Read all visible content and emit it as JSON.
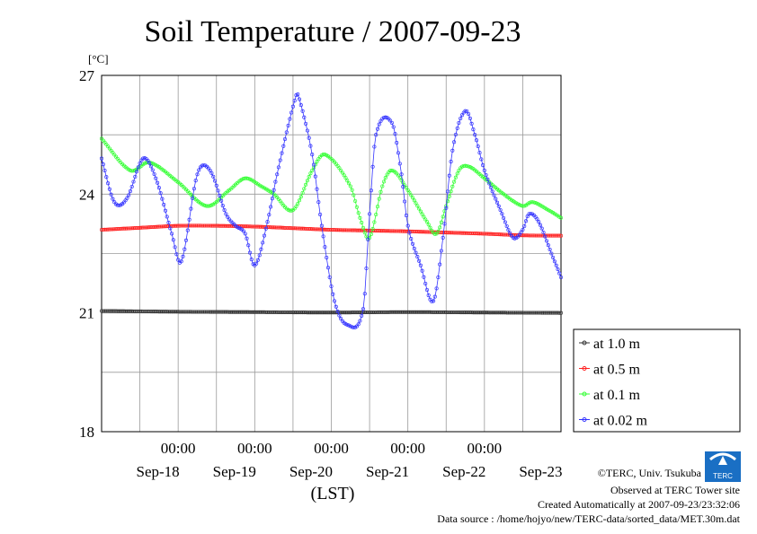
{
  "chart_data": {
    "type": "line",
    "title": "Soil Temperature / 2007-09-23",
    "ylabel": "[°C]",
    "xlabel": "(LST)",
    "ylim": [
      18,
      27
    ],
    "yticks": [
      18,
      21,
      24,
      27
    ],
    "xlim": [
      0,
      144
    ],
    "x_unit": "hours since Sep-17 00:00 LST",
    "time_ticks": [
      {
        "x": 24,
        "label": "00:00",
        "date": "Sep-18"
      },
      {
        "x": 48,
        "label": "00:00",
        "date": "Sep-19"
      },
      {
        "x": 72,
        "label": "00:00",
        "date": "Sep-20"
      },
      {
        "x": 96,
        "label": "00:00",
        "date": "Sep-21"
      },
      {
        "x": 120,
        "label": "00:00",
        "date": "Sep-22"
      }
    ],
    "date_labels": [
      "Sep-18",
      "Sep-19",
      "Sep-20",
      "Sep-21",
      "Sep-22",
      "Sep-23"
    ],
    "grid": true,
    "legend_position": "right",
    "series": [
      {
        "name": "at 1.0 m",
        "color": "#333333",
        "x": [
          0,
          24,
          48,
          72,
          96,
          120,
          144
        ],
        "y": [
          21.05,
          21.03,
          21.02,
          21.01,
          21.02,
          21.01,
          21.0
        ]
      },
      {
        "name": "at 0.5 m",
        "color": "#ff2020",
        "x": [
          0,
          12,
          24,
          36,
          48,
          60,
          72,
          84,
          96,
          108,
          120,
          132,
          144
        ],
        "y": [
          23.1,
          23.15,
          23.2,
          23.2,
          23.18,
          23.14,
          23.1,
          23.08,
          23.06,
          23.03,
          23.0,
          22.96,
          22.95
        ]
      },
      {
        "name": "at 0.1 m",
        "color": "#33ff33",
        "x": [
          0,
          9,
          15,
          24,
          33,
          40,
          45,
          50,
          54,
          60,
          66,
          70,
          78,
          81,
          84,
          88,
          91,
          96,
          102,
          105,
          108,
          112,
          115,
          120,
          126,
          132,
          135,
          140,
          144
        ],
        "y": [
          25.4,
          24.6,
          24.8,
          24.3,
          23.7,
          24.1,
          24.4,
          24.2,
          24.0,
          23.6,
          24.6,
          25.0,
          24.2,
          23.4,
          22.9,
          24.2,
          24.6,
          24.1,
          23.3,
          23.0,
          23.7,
          24.6,
          24.7,
          24.4,
          24.0,
          23.7,
          23.8,
          23.6,
          23.4
        ]
      },
      {
        "name": "at 0.02 m",
        "color": "#3333ff",
        "x": [
          0,
          4,
          8,
          13,
          17,
          22,
          25,
          30,
          34,
          39,
          42,
          45,
          48,
          52,
          55,
          61,
          62,
          66,
          69,
          73,
          77,
          82,
          84,
          86,
          91,
          94,
          96,
          100,
          104,
          107,
          110,
          114,
          117,
          120,
          125,
          129,
          132,
          134,
          137,
          141,
          144
        ],
        "y": [
          24.9,
          23.8,
          23.9,
          24.9,
          24.4,
          23.0,
          22.3,
          24.5,
          24.6,
          23.5,
          23.2,
          23.0,
          22.2,
          23.3,
          24.5,
          26.5,
          26.4,
          25.0,
          23.2,
          21.3,
          20.7,
          21.1,
          23.5,
          25.5,
          25.8,
          24.5,
          23.2,
          22.2,
          21.3,
          22.9,
          25.1,
          26.1,
          25.5,
          24.6,
          23.6,
          22.9,
          23.1,
          23.5,
          23.3,
          22.5,
          21.9
        ]
      }
    ]
  },
  "footer": {
    "copyright": "©TERC, Univ. Tsukuba",
    "observed": "Observed at TERC Tower site",
    "created": "Created Automatically at 2007-09-23/23:32:06",
    "source": "Data source : /home/hojyo/new/TERC-data/sorted_data/MET.30m.dat"
  },
  "logo": {
    "text": "TERC",
    "color": "#1a6fc4"
  }
}
